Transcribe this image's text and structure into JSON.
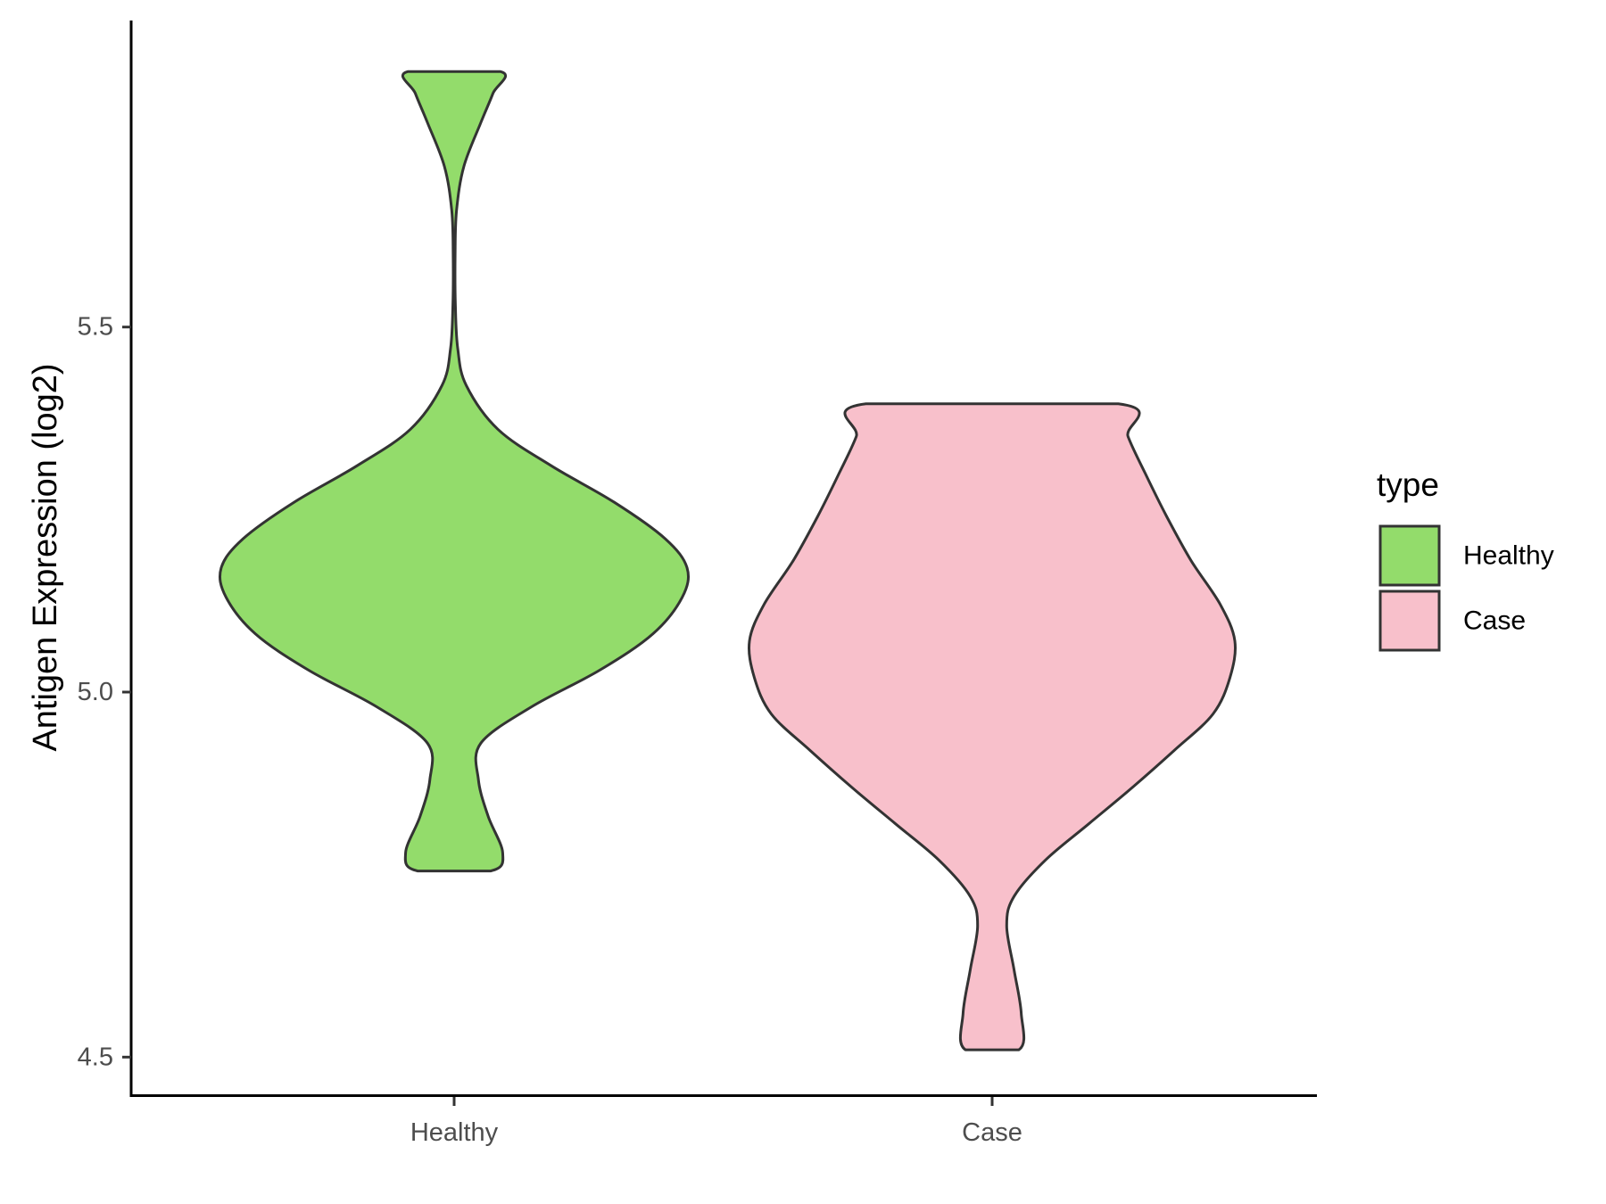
{
  "chart_data": {
    "type": "violin",
    "title": "",
    "xlabel": "",
    "ylabel": "Antigen Expression (log2)",
    "ylim": [
      4.44,
      5.9
    ],
    "yticks": [
      4.5,
      5.0,
      5.5
    ],
    "ytick_labels": [
      "4.5",
      "5.0",
      "5.5"
    ],
    "categories": [
      "Healthy",
      "Case"
    ],
    "grid": false,
    "legend": {
      "title": "type",
      "position": "right",
      "entries": [
        {
          "label": "Healthy",
          "color": "#93dc6b"
        },
        {
          "label": "Case",
          "color": "#f8c0cb"
        }
      ]
    },
    "series": [
      {
        "category": "Healthy",
        "color": "#93dc6b",
        "min": 4.755,
        "max": 5.85,
        "density_profile": [
          [
            4.755,
            0.15
          ],
          [
            4.78,
            0.2
          ],
          [
            4.83,
            0.14
          ],
          [
            4.88,
            0.1
          ],
          [
            4.93,
            0.11
          ],
          [
            4.98,
            0.32
          ],
          [
            5.03,
            0.6
          ],
          [
            5.08,
            0.82
          ],
          [
            5.13,
            0.94
          ],
          [
            5.17,
            0.96
          ],
          [
            5.21,
            0.87
          ],
          [
            5.26,
            0.66
          ],
          [
            5.31,
            0.4
          ],
          [
            5.36,
            0.18
          ],
          [
            5.42,
            0.05
          ],
          [
            5.47,
            0.015
          ],
          [
            5.53,
            0.005
          ],
          [
            5.6,
            0.004
          ],
          [
            5.66,
            0.01
          ],
          [
            5.72,
            0.04
          ],
          [
            5.78,
            0.11
          ],
          [
            5.82,
            0.16
          ],
          [
            5.85,
            0.19
          ]
        ]
      },
      {
        "category": "Case",
        "color": "#f8c0cb",
        "min": 4.51,
        "max": 5.395,
        "density_profile": [
          [
            4.51,
            0.11
          ],
          [
            4.56,
            0.12
          ],
          [
            4.62,
            0.09
          ],
          [
            4.68,
            0.06
          ],
          [
            4.72,
            0.09
          ],
          [
            4.77,
            0.22
          ],
          [
            4.82,
            0.4
          ],
          [
            4.87,
            0.58
          ],
          [
            4.92,
            0.75
          ],
          [
            4.97,
            0.91
          ],
          [
            5.02,
            0.98
          ],
          [
            5.07,
            1.0
          ],
          [
            5.12,
            0.94
          ],
          [
            5.18,
            0.82
          ],
          [
            5.24,
            0.72
          ],
          [
            5.3,
            0.63
          ],
          [
            5.35,
            0.56
          ],
          [
            5.395,
            0.52
          ]
        ]
      }
    ]
  }
}
